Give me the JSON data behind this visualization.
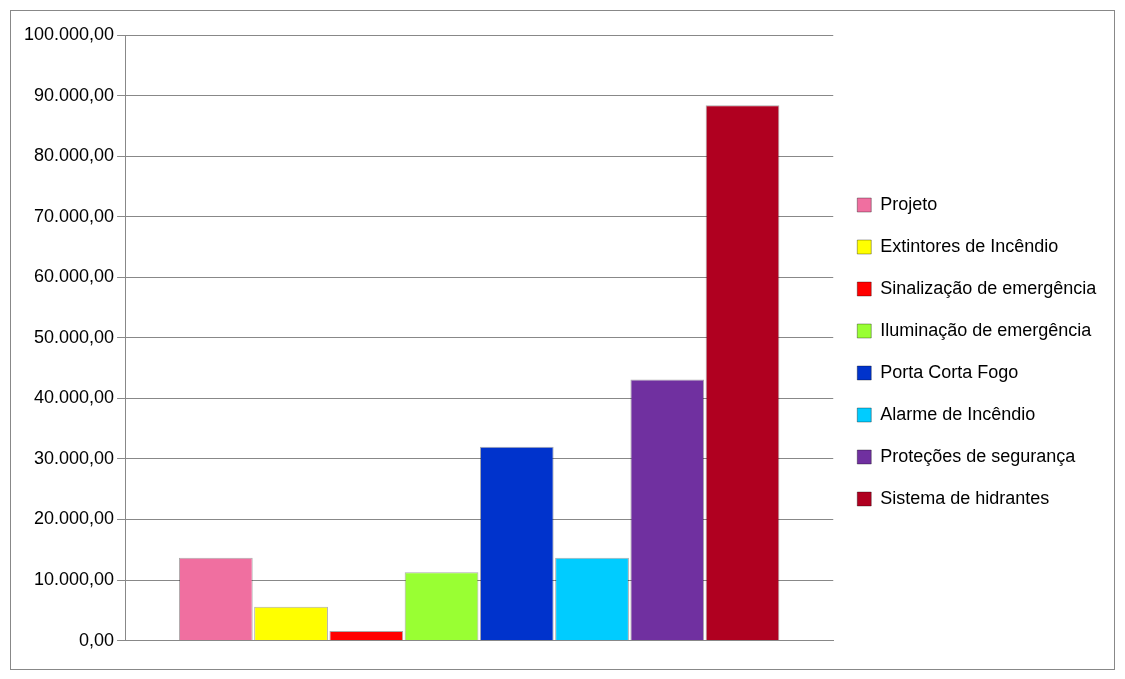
{
  "chart_data": {
    "type": "bar",
    "categories": [
      null
    ],
    "series": [
      {
        "name": "Projeto",
        "color": "#f06fa0",
        "values": [
          13700
        ]
      },
      {
        "name": "Extintores de Incêndio",
        "color": "#ffff00",
        "values": [
          5600
        ]
      },
      {
        "name": "Sinalização de emergência",
        "color": "#ff0000",
        "values": [
          1600
        ]
      },
      {
        "name": "Iluminação de emergência",
        "color": "#99ff33",
        "values": [
          11300
        ]
      },
      {
        "name": "Porta Corta Fogo",
        "color": "#0033cc",
        "values": [
          32000
        ]
      },
      {
        "name": "Alarme de Incêndio",
        "color": "#00ccff",
        "values": [
          13700
        ]
      },
      {
        "name": "Proteções de segurança",
        "color": "#7030a0",
        "values": [
          43100
        ]
      },
      {
        "name": "Sistema de hidrantes",
        "color": "#b00020",
        "values": [
          88400
        ]
      }
    ],
    "ylim": [
      0,
      100000
    ],
    "yticks": [
      {
        "value": 0,
        "label": "0,00"
      },
      {
        "value": 10000,
        "label": "10.000,00"
      },
      {
        "value": 20000,
        "label": "20.000,00"
      },
      {
        "value": 30000,
        "label": "30.000,00"
      },
      {
        "value": 40000,
        "label": "40.000,00"
      },
      {
        "value": 50000,
        "label": "50.000,00"
      },
      {
        "value": 60000,
        "label": "60.000,00"
      },
      {
        "value": 70000,
        "label": "70.000,00"
      },
      {
        "value": 80000,
        "label": "80.000,00"
      },
      {
        "value": 90000,
        "label": "90.000,00"
      },
      {
        "value": 100000,
        "label": "100.000,00"
      }
    ],
    "grid": "y",
    "legend": "right"
  }
}
